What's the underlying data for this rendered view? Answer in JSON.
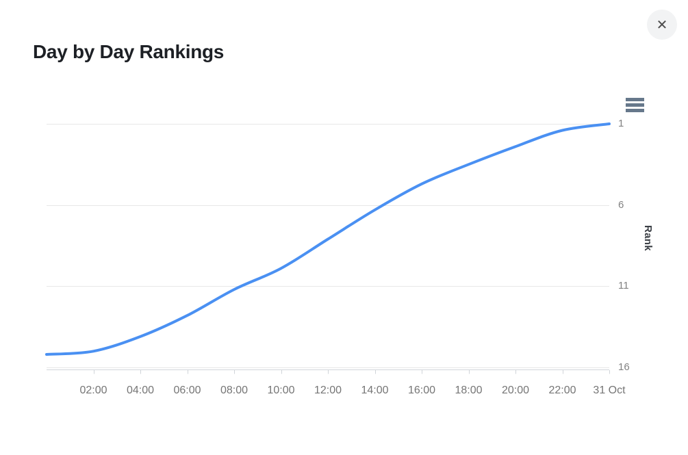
{
  "page": {
    "title": "Day by Day Rankings",
    "icons": {
      "close": "✕",
      "context_menu": "hamburger-menu-icon"
    }
  },
  "colors": {
    "series_blue": "#4a90f2",
    "gridline": "#e7e7e7",
    "axis_line": "#d0d4d9",
    "menu_icon": "#66788b"
  },
  "chart_data": {
    "type": "line",
    "title": "Day by Day Rankings",
    "xlabel": "",
    "ylabel": "Rank",
    "legend": "none",
    "grid": "horizontal-only",
    "y_axis": {
      "title": "Rank",
      "side": "right",
      "inverted": true,
      "ticks": [
        1,
        6,
        11,
        16
      ],
      "range": [
        1,
        16
      ]
    },
    "x_axis": {
      "unit": "time of day (30 Oct, ending 31 Oct)",
      "ticks": [
        {
          "hour": 2,
          "label": "02:00"
        },
        {
          "hour": 4,
          "label": "04:00"
        },
        {
          "hour": 6,
          "label": "06:00"
        },
        {
          "hour": 8,
          "label": "08:00"
        },
        {
          "hour": 10,
          "label": "10:00"
        },
        {
          "hour": 12,
          "label": "12:00"
        },
        {
          "hour": 14,
          "label": "14:00"
        },
        {
          "hour": 16,
          "label": "16:00"
        },
        {
          "hour": 18,
          "label": "18:00"
        },
        {
          "hour": 20,
          "label": "20:00"
        },
        {
          "hour": 22,
          "label": "22:00"
        },
        {
          "hour": 24,
          "label": "31 Oct"
        }
      ]
    },
    "series": [
      {
        "name": "Rank",
        "color": "#4a90f2",
        "points": [
          [
            0,
            15.2
          ],
          [
            2,
            15.0
          ],
          [
            4,
            14.1
          ],
          [
            6,
            12.8
          ],
          [
            8,
            11.2
          ],
          [
            10,
            9.9
          ],
          [
            12,
            8.1
          ],
          [
            14,
            6.3
          ],
          [
            16,
            4.7
          ],
          [
            18,
            3.5
          ],
          [
            20,
            2.4
          ],
          [
            22,
            1.4
          ],
          [
            24,
            1.0
          ]
        ]
      }
    ]
  }
}
